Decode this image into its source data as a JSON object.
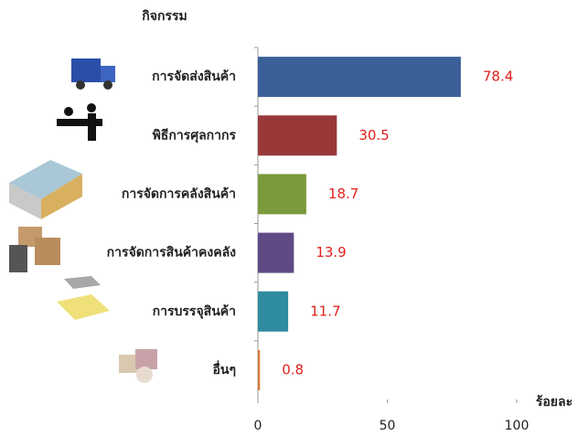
{
  "chart_data": {
    "type": "bar",
    "orientation": "horizontal",
    "y_axis_label": "กิจกรรม",
    "x_axis_label": "ร้อยละ",
    "categories": [
      "การจัดส่งสินค้า",
      "พิธีการศุลกากร",
      "การจัดการคลังสินค้า",
      "การจัดการสินค้าคงคลัง",
      "การบรรจุสินค้า",
      "อื่นๆ"
    ],
    "values": [
      78.4,
      30.5,
      18.7,
      13.9,
      11.7,
      0.8
    ],
    "colors": [
      "#3b5f98",
      "#993838",
      "#7b9a3c",
      "#5f4a86",
      "#2f8ba0",
      "#d9793a"
    ],
    "xlim": [
      0,
      100
    ],
    "xticks": [
      0,
      50,
      100
    ]
  }
}
